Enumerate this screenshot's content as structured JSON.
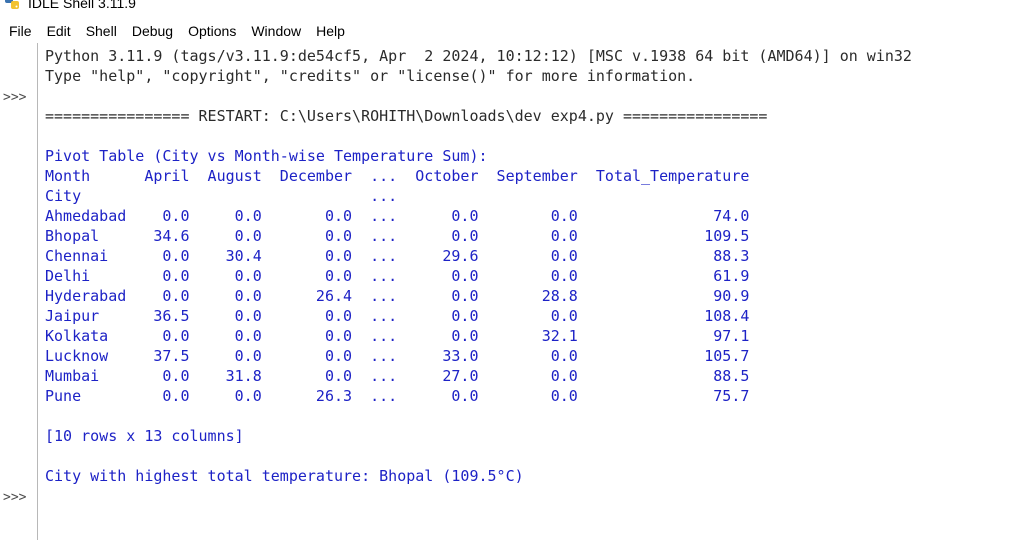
{
  "window": {
    "title": "IDLE Shell 3.11.9",
    "icon": "python-icon"
  },
  "menu": {
    "items": [
      "File",
      "Edit",
      "Shell",
      "Debug",
      "Options",
      "Window",
      "Help"
    ]
  },
  "shell": {
    "prompt": ">>>",
    "banner": [
      "Python 3.11.9 (tags/v3.11.9:de54cf5, Apr  2 2024, 10:12:12) [MSC v.1938 64 bit (AMD64)] on win32",
      "Type \"help\", \"copyright\", \"credits\" or \"license()\" for more information."
    ],
    "restart": "================ RESTART: C:\\Users\\ROHITH\\Downloads\\dev exp4.py ================",
    "output": [
      "Pivot Table (City vs Month-wise Temperature Sum):",
      "Month      April  August  December  ...  October  September  Total_Temperature",
      "City                                ...",
      "Ahmedabad    0.0     0.0       0.0  ...      0.0        0.0               74.0",
      "Bhopal      34.6     0.0       0.0  ...      0.0        0.0              109.5",
      "Chennai      0.0    30.4       0.0  ...     29.6        0.0               88.3",
      "Delhi        0.0     0.0       0.0  ...      0.0        0.0               61.9",
      "Hyderabad    0.0     0.0      26.4  ...      0.0       28.8               90.9",
      "Jaipur      36.5     0.0       0.0  ...      0.0        0.0              108.4",
      "Kolkata      0.0     0.0       0.0  ...      0.0       32.1               97.1",
      "Lucknow     37.5     0.0       0.0  ...     33.0        0.0              105.7",
      "Mumbai       0.0    31.8       0.0  ...     27.0        0.0               88.5",
      "Pune         0.0     0.0      26.3  ...      0.0        0.0               75.7",
      "",
      "[10 rows x 13 columns]",
      "",
      "City with highest total temperature: Bhopal (109.5°C)"
    ]
  }
}
